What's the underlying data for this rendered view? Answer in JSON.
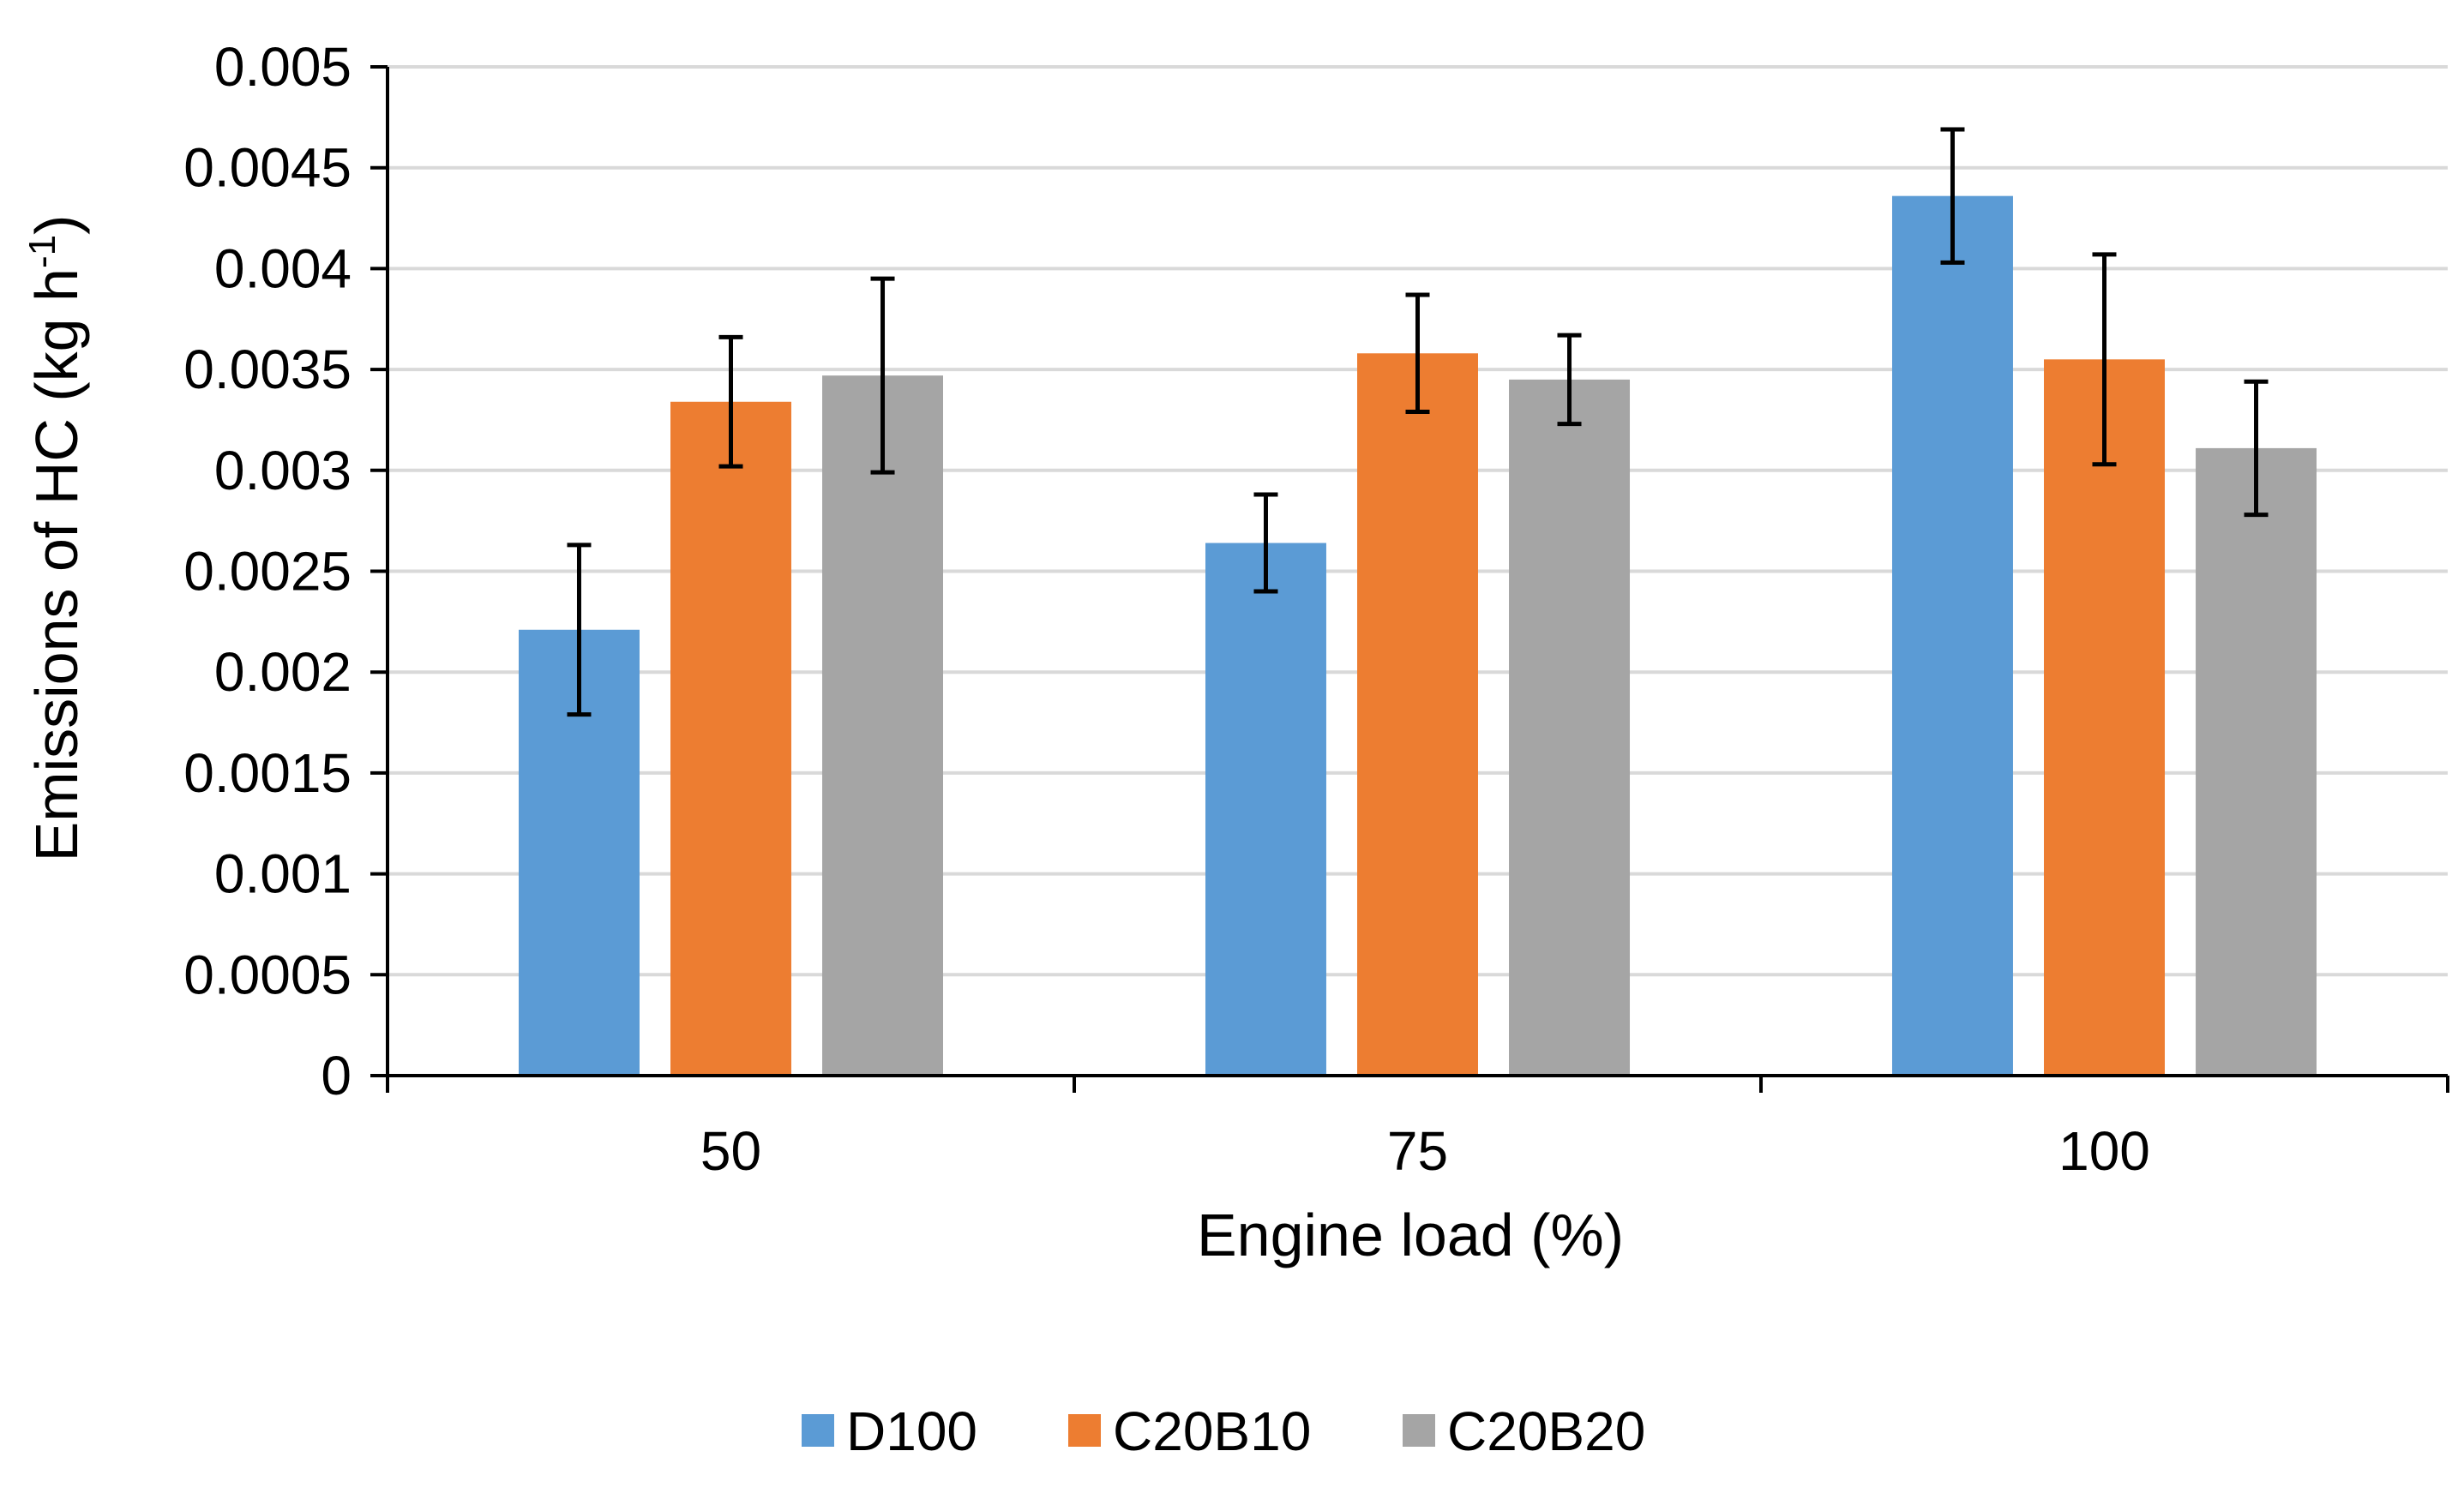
{
  "chart_data": {
    "type": "bar",
    "title": "",
    "xlabel": "Engine load (%)",
    "ylabel": "Emissions of HC (kg h",
    "ylabel_sup": "-1",
    "ylabel_close": ")",
    "categories": [
      "50",
      "75",
      "100"
    ],
    "ylim": [
      0,
      0.005
    ],
    "yticks": [
      0,
      0.0005,
      0.001,
      0.0015,
      0.002,
      0.0025,
      0.003,
      0.0035,
      0.004,
      0.0045,
      0.005
    ],
    "ytick_labels": [
      "0",
      "0.0005",
      "0.001",
      "0.0015",
      "0.002",
      "0.0025",
      "0.003",
      "0.0035",
      "0.004",
      "0.0045",
      "0.005"
    ],
    "grid": true,
    "legend_position": "bottom",
    "series": [
      {
        "name": "D100",
        "color": "#5B9BD5",
        "values": [
          0.00221,
          0.00264,
          0.00436
        ],
        "errors": [
          0.00042,
          0.00024,
          0.00033
        ]
      },
      {
        "name": "C20B10",
        "color": "#ED7D31",
        "values": [
          0.00334,
          0.00358,
          0.00355
        ],
        "errors": [
          0.00032,
          0.00029,
          0.00052
        ]
      },
      {
        "name": "C20B20",
        "color": "#A5A5A5",
        "values": [
          0.00347,
          0.00345,
          0.00311
        ],
        "errors": [
          0.00048,
          0.00022,
          0.00033
        ]
      }
    ]
  }
}
